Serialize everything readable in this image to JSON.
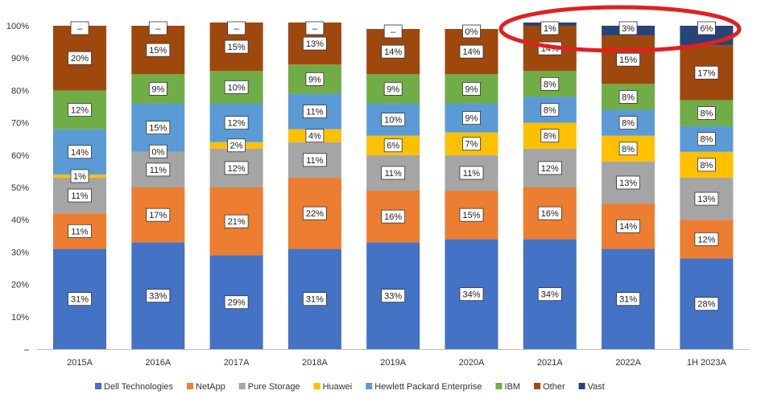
{
  "chart_data": {
    "type": "bar",
    "stacked": true,
    "categories": [
      "2015A",
      "2016A",
      "2017A",
      "2018A",
      "2019A",
      "2020A",
      "2021A",
      "2022A",
      "1H 2023A"
    ],
    "ylim": [
      0,
      100
    ],
    "yticks": [
      "–",
      "10%",
      "20%",
      "30%",
      "40%",
      "50%",
      "60%",
      "70%",
      "80%",
      "90%",
      "100%"
    ],
    "legend_position": "bottom",
    "series": [
      {
        "name": "Dell Technologies",
        "color": "#4472C4",
        "values": [
          31,
          33,
          29,
          31,
          33,
          34,
          34,
          31,
          28
        ],
        "labels": [
          "31%",
          "33%",
          "29%",
          "31%",
          "33%",
          "34%",
          "34%",
          "31%",
          "28%"
        ]
      },
      {
        "name": "NetApp",
        "color": "#ED7D31",
        "values": [
          11,
          17,
          21,
          22,
          16,
          15,
          16,
          14,
          12
        ],
        "labels": [
          "11%",
          "17%",
          "21%",
          "22%",
          "16%",
          "15%",
          "16%",
          "14%",
          "12%"
        ]
      },
      {
        "name": "Pure Storage",
        "color": "#A5A5A5",
        "values": [
          11,
          11,
          12,
          11,
          11,
          11,
          12,
          13,
          13
        ],
        "labels": [
          "11%",
          "11%",
          "12%",
          "11%",
          "11%",
          "11%",
          "12%",
          "13%",
          "13%"
        ]
      },
      {
        "name": "Huawei",
        "color": "#FFC000",
        "values": [
          1,
          0,
          2,
          4,
          6,
          7,
          8,
          8,
          8
        ],
        "labels": [
          "1%",
          "0%",
          "2%",
          "4%",
          "6%",
          "7%",
          "8%",
          "8%",
          "8%"
        ]
      },
      {
        "name": "Hewlett Packard Enterprise",
        "color": "#5B9BD5",
        "values": [
          14,
          15,
          12,
          11,
          10,
          9,
          8,
          8,
          8
        ],
        "labels": [
          "14%",
          "15%",
          "12%",
          "11%",
          "10%",
          "9%",
          "8%",
          "8%",
          "8%"
        ]
      },
      {
        "name": "IBM",
        "color": "#70AD47",
        "values": [
          12,
          9,
          10,
          9,
          9,
          9,
          8,
          8,
          8
        ],
        "labels": [
          "12%",
          "9%",
          "10%",
          "9%",
          "9%",
          "9%",
          "8%",
          "8%",
          "8%"
        ]
      },
      {
        "name": "Other",
        "color": "#9E480E",
        "values": [
          20,
          15,
          15,
          13,
          14,
          14,
          14,
          15,
          17
        ],
        "labels": [
          "20%",
          "15%",
          "15%",
          "13%",
          "14%",
          "14%",
          "14%",
          "15%",
          "17%"
        ]
      },
      {
        "name": "Vast",
        "color": "#264478",
        "values": [
          0,
          0,
          0,
          0,
          0,
          0,
          1,
          3,
          6
        ],
        "labels": [
          "–",
          "–",
          "–",
          "–",
          "–",
          "0%",
          "1%",
          "3%",
          "6%"
        ]
      }
    ]
  },
  "annotation": {
    "shape": "ellipse",
    "color": "#E02020"
  }
}
